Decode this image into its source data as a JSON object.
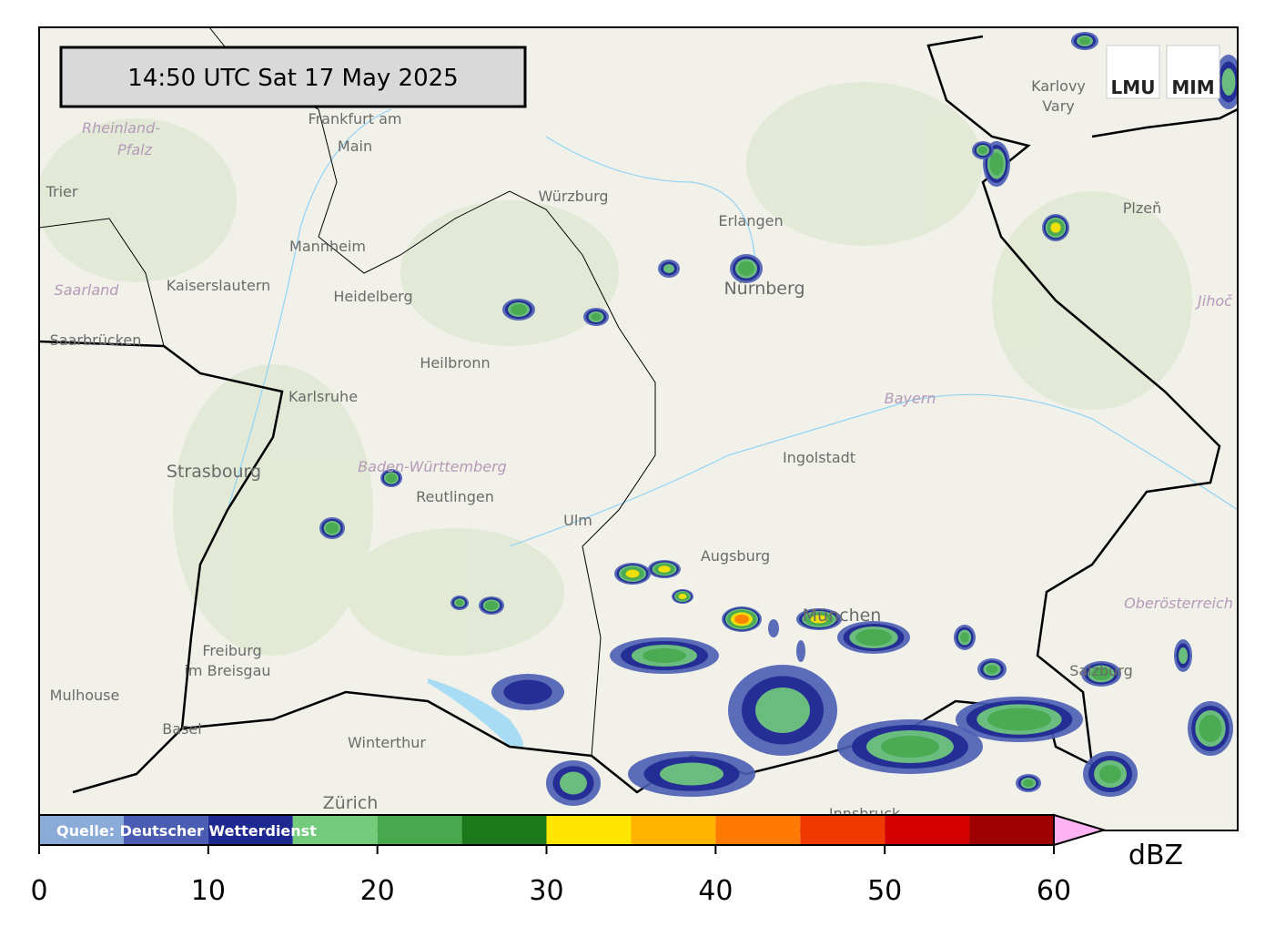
{
  "timestamp": "14:50 UTC  Sat 17 May 2025",
  "logos": [
    "LMU",
    "MIM"
  ],
  "places": [
    "Frankfurt am",
    "Main",
    "Trier",
    "Mannheim",
    "Kaiserslautern",
    "Heidelberg",
    "Saarbrücken",
    "Heilbronn",
    "Karlsruhe",
    "Strasbourg",
    "Reutlingen",
    "Ulm",
    "Augsburg",
    "Freiburg",
    "im Breisgau",
    "Mulhouse",
    "Basel",
    "Winterthur",
    "Zürich",
    "Würzburg",
    "Erlangen",
    "Nürnberg",
    "Ingolstadt",
    "Karlovy",
    "Vary",
    "Plzeň",
    "München",
    "Salzburg",
    "Innsbruck"
  ],
  "regions": [
    "Rheinland-",
    "Pfalz",
    "Saarland",
    "Baden-Württemberg",
    "Bayern",
    "Jihoč",
    "Oberösterreich"
  ],
  "colorbar": {
    "bounds": [
      0,
      5,
      10,
      15,
      20,
      25,
      30,
      35,
      40,
      45,
      50,
      55,
      60
    ],
    "colors": [
      "#8aaad8",
      "#4a5db3",
      "#1e2891",
      "#72cc7c",
      "#48a84e",
      "#1b791c",
      "#ffe600",
      "#ffb400",
      "#ff7a00",
      "#f03a00",
      "#d40000",
      "#9e0000"
    ],
    "extend_color": "#ffb3f2",
    "xlim": [
      0,
      60
    ],
    "xticks": [
      0,
      10,
      20,
      30,
      40,
      50,
      60
    ],
    "unit": "dBZ",
    "source": "Quelle: Deutscher Wetterdienst"
  }
}
